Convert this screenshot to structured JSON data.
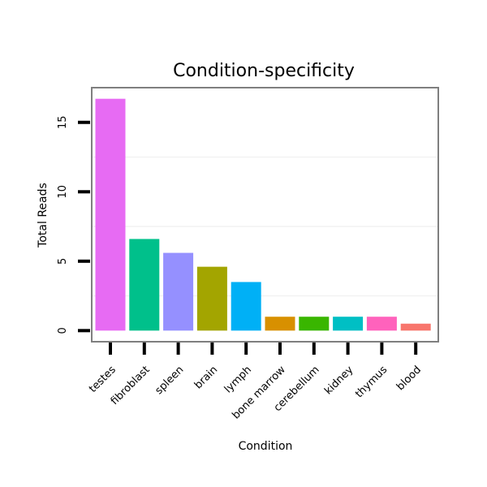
{
  "chart_data": {
    "type": "bar",
    "title": "Condition-specificity",
    "xlabel": "Condition",
    "ylabel": "Total Reads",
    "categories": [
      "testes",
      "fibroblast",
      "spleen",
      "brain",
      "lymph",
      "bone marrow",
      "cerebellum",
      "kidney",
      "thymus",
      "blood"
    ],
    "values": [
      16.7,
      6.6,
      5.6,
      4.6,
      3.5,
      1.0,
      1.0,
      1.0,
      1.0,
      0.5
    ],
    "colors": [
      "#E76BF3",
      "#00C08B",
      "#9590FF",
      "#A3A500",
      "#00B0F6",
      "#D89000",
      "#39B600",
      "#00BFC4",
      "#FF62BC",
      "#F8766D"
    ],
    "yticks": [
      0,
      5,
      10,
      15
    ],
    "ylim": [
      -0.8,
      17.5
    ],
    "grid": true,
    "legend": "none"
  }
}
